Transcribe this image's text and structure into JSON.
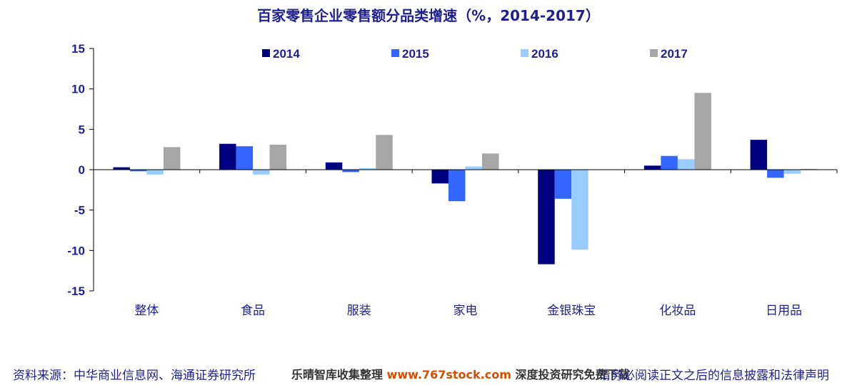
{
  "chart_data": {
    "type": "bar",
    "title": "百家零售企业零售额分品类增速（%，2014-2017）",
    "categories": [
      "整体",
      "食品",
      "服装",
      "家电",
      "金银珠宝",
      "化妆品",
      "日用品"
    ],
    "series": [
      {
        "name": "2014",
        "color": "#000080",
        "values": [
          0.3,
          3.2,
          0.9,
          -1.7,
          -11.7,
          0.5,
          3.7
        ]
      },
      {
        "name": "2015",
        "color": "#3366ff",
        "values": [
          -0.2,
          2.9,
          -0.3,
          -3.9,
          -3.6,
          1.7,
          -1.0
        ]
      },
      {
        "name": "2016",
        "color": "#99ccff",
        "values": [
          -0.6,
          -0.6,
          0.2,
          0.4,
          -9.9,
          1.3,
          -0.5
        ]
      },
      {
        "name": "2017",
        "color": "#a6a6a6",
        "values": [
          2.8,
          3.1,
          4.3,
          2.0,
          null,
          9.5,
          0.1
        ]
      }
    ],
    "ylim": [
      -15,
      15
    ],
    "yticks": [
      15,
      10,
      5,
      0,
      -5,
      -10,
      -15
    ],
    "xlabel": "",
    "ylabel": "",
    "grid": false,
    "legend": "top"
  },
  "footer": {
    "source": "资料来源：中华商业信息网、海通证券研究所",
    "watermark_prefix": "乐晴智库收集整理 ",
    "watermark_url": "www.767stock.com",
    "watermark_suffix": " 深度投资研究免费下载",
    "disclaimer": "请务必阅读正文之后的信息披露和法律声明"
  }
}
